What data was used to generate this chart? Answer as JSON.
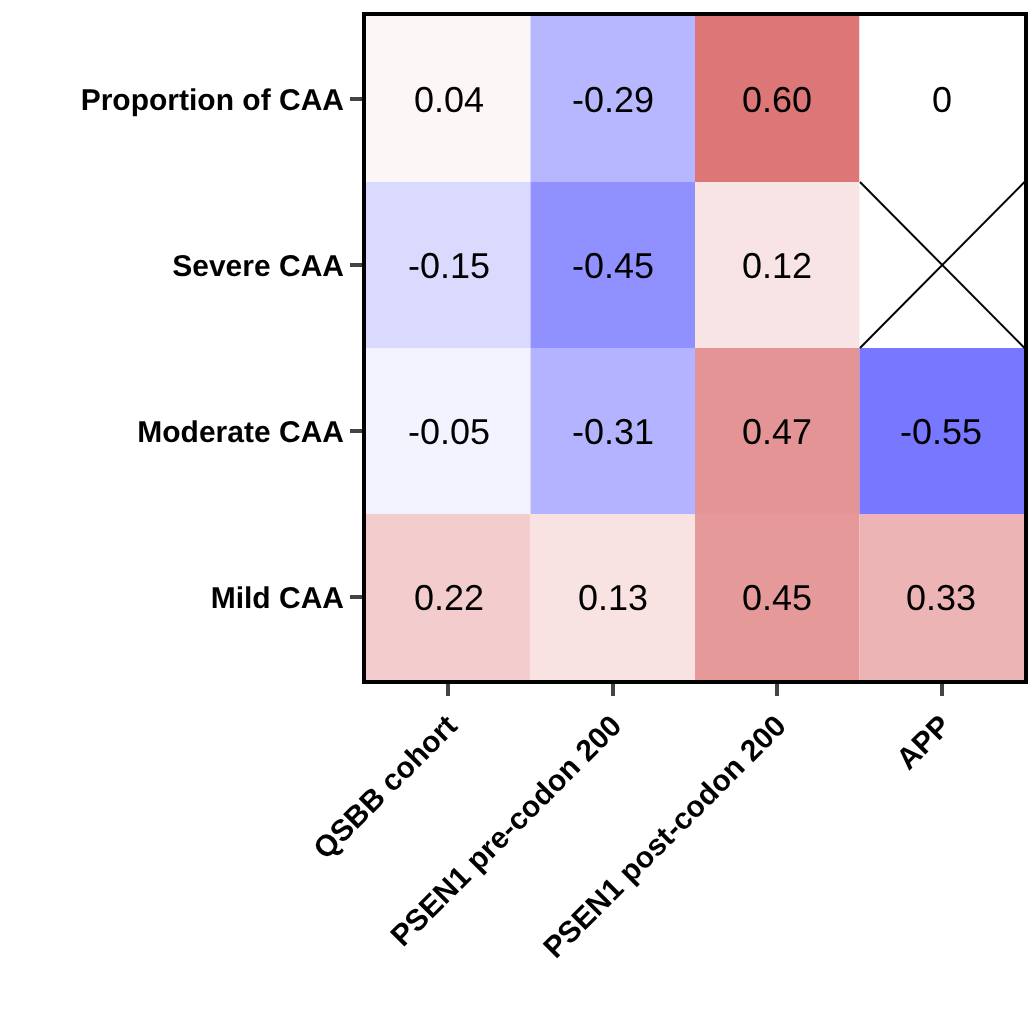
{
  "chart_data": {
    "type": "heatmap",
    "categories": [
      "QSBB cohort",
      "PSEN1 pre-codon 200",
      "PSEN1 post-codon 200",
      "APP"
    ],
    "y_categories": [
      "Proportion of CAA",
      "Severe CAA",
      "Moderate CAA",
      "Mild CAA"
    ],
    "cells": [
      [
        0.04,
        -0.29,
        0.6,
        0
      ],
      [
        -0.15,
        -0.45,
        0.12,
        null
      ],
      [
        -0.05,
        -0.31,
        0.47,
        -0.55
      ],
      [
        0.22,
        0.13,
        0.45,
        0.33
      ]
    ],
    "cell_labels": [
      [
        "0.04",
        "-0.29",
        "0.60",
        "0"
      ],
      [
        "-0.15",
        "-0.45",
        "0.12",
        null
      ],
      [
        "-0.05",
        "-0.31",
        "0.47",
        "-0.55"
      ],
      [
        "0.22",
        "0.13",
        "0.45",
        "0.33"
      ]
    ]
  }
}
